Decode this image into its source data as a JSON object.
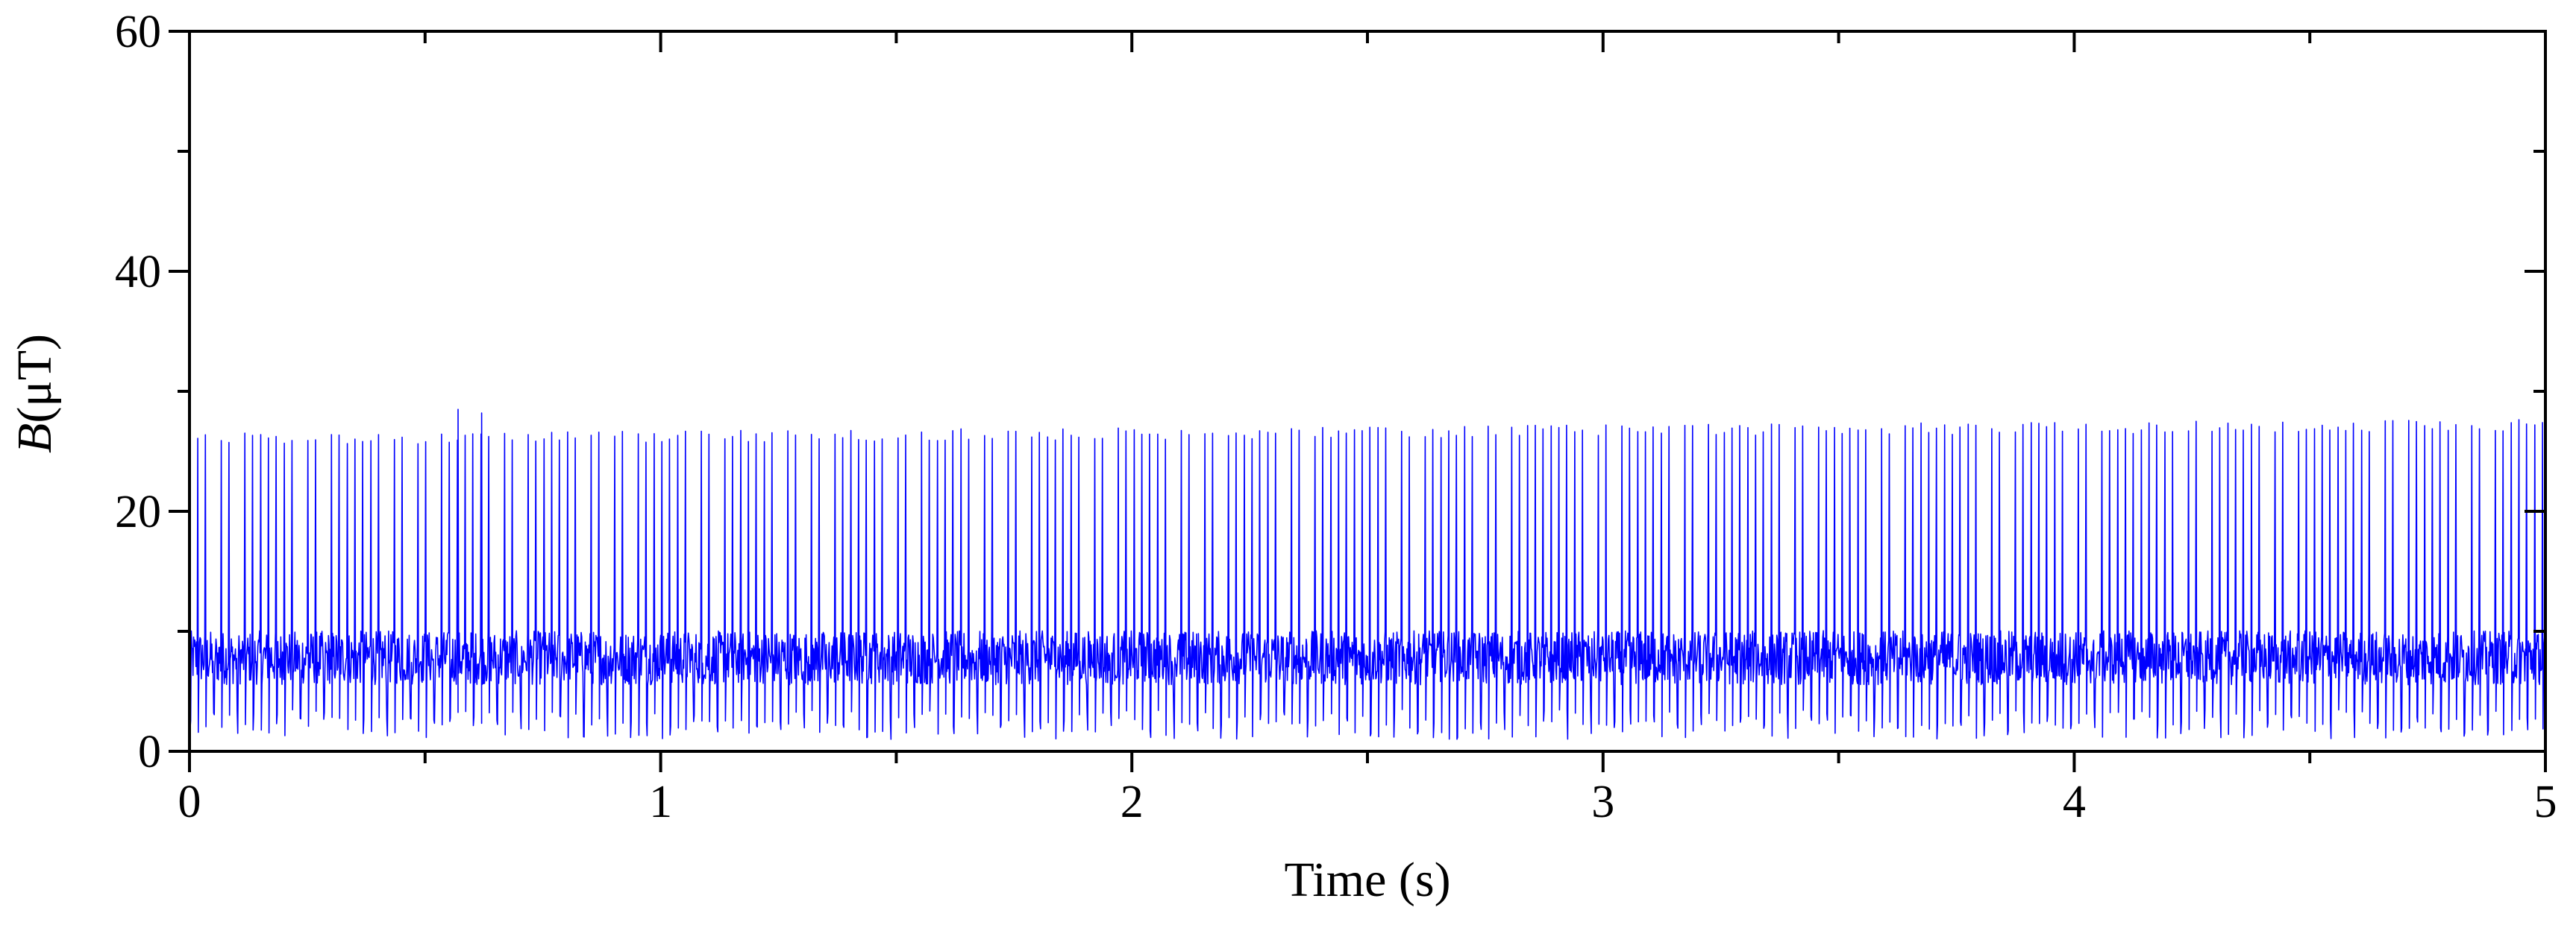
{
  "chart_data": {
    "type": "line",
    "xlabel": "Time (s)",
    "ylabel": {
      "symbol": "B",
      "unit": "(μT)"
    },
    "xlim": [
      0,
      5
    ],
    "ylim": [
      0,
      60
    ],
    "x_ticks": [
      0,
      1,
      2,
      3,
      4,
      5
    ],
    "y_ticks": [
      0,
      20,
      40,
      60
    ],
    "x_minor_step": 0.5,
    "y_minor_step": 10,
    "grid": false,
    "legend": "none",
    "series": [
      {
        "color": "#0000ff",
        "description_values": {
          "pulse_period_s": 0.0167,
          "baseline_uT": 7.8,
          "peak_uT_start": 26.0,
          "peak_uT_end": 27.2,
          "trough_uT": 1.0,
          "occasional_spikes": [
            {
              "x": 0.57,
              "y": 28.5
            },
            {
              "x": 0.62,
              "y": 28.2
            }
          ]
        }
      }
    ]
  }
}
